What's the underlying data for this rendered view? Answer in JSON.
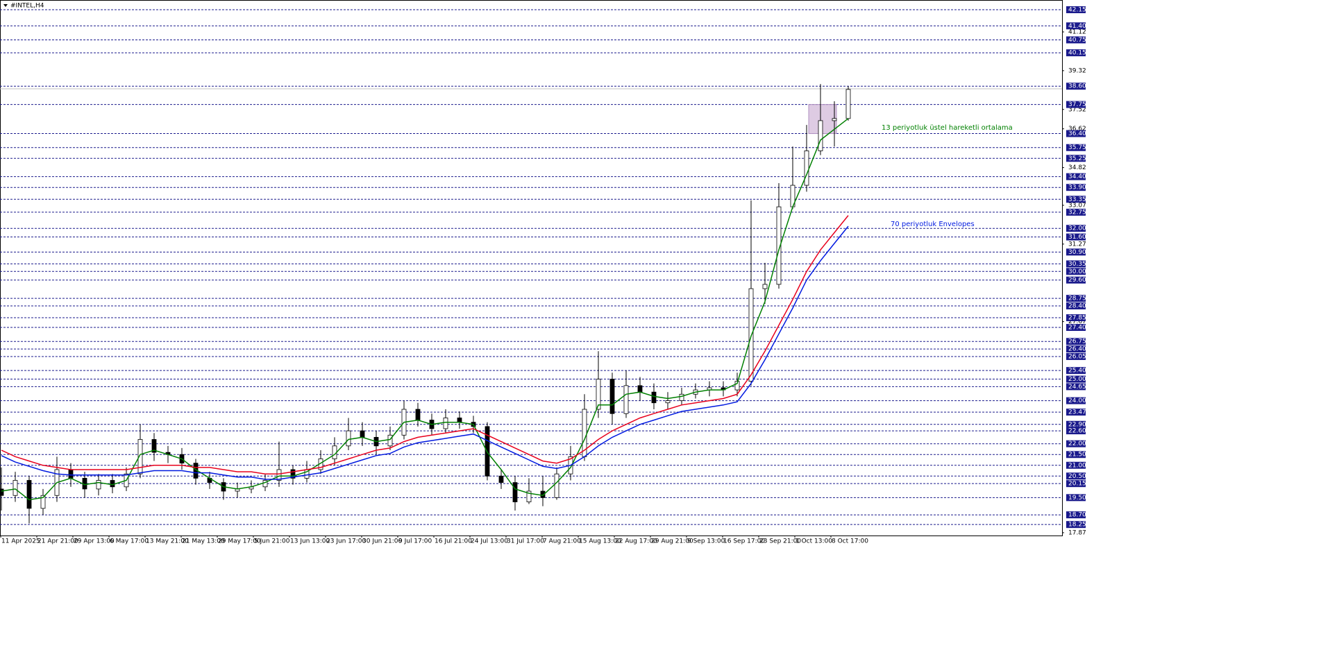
{
  "chart_data": {
    "type": "candlestick",
    "title": "#INTEL,H4",
    "ylim": [
      17.74,
      42.44
    ],
    "yticks": [
      41.12,
      39.32,
      37.52,
      36.62,
      34.82,
      33.07,
      31.27,
      27.67,
      17.87
    ],
    "levels": [
      42.15,
      {
        "value": 41.4,
        "label": "41.40"
      },
      40.75,
      40.15,
      {
        "value": 38.6,
        "label": "38.60"
      },
      37.75,
      {
        "value": 36.4,
        "label": "36.40"
      },
      35.75,
      35.25,
      {
        "value": 34.4,
        "label": "34.40"
      },
      {
        "value": 33.9,
        "label": "33.90"
      },
      33.35,
      32.75,
      {
        "value": 32,
        "label": "32.00"
      },
      {
        "value": 31.6,
        "label": "31.60"
      },
      {
        "value": 30.9,
        "label": "30.90"
      },
      30.35,
      {
        "value": 30,
        "label": "30.00"
      },
      {
        "value": 29.6,
        "label": "29.60"
      },
      28.75,
      {
        "value": 28.4,
        "label": "28.40"
      },
      27.85,
      {
        "value": 27.4,
        "label": "27.40"
      },
      26.75,
      {
        "value": 26.4,
        "label": "26.40"
      },
      26.05,
      {
        "value": 25.4,
        "label": "25.40"
      },
      {
        "value": 25,
        "label": "25.00"
      },
      24.65,
      {
        "value": 24,
        "label": "24.00"
      },
      23.47,
      {
        "value": 22.9,
        "label": "22.90"
      },
      {
        "value": 22.6,
        "label": "22.60"
      },
      {
        "value": 22,
        "label": "22.00"
      },
      {
        "value": 21.5,
        "label": "21.50"
      },
      {
        "value": 21,
        "label": "21.00"
      },
      {
        "value": 20.5,
        "label": "20.50"
      },
      20.15,
      {
        "value": 19.5,
        "label": "19.50"
      },
      {
        "value": 18.7,
        "label": "18.70"
      },
      18.25
    ],
    "level_color": "#1a1a8c",
    "price_line": 38.48,
    "range_box": [
      36.4,
      37.75
    ],
    "x_labels": [
      "11 Apr 2025",
      "21 Apr 21:00",
      "29 Apr 13:00",
      "6 May 17:00",
      "13 May 21:00",
      "21 May 13:00",
      "29 May 17:00",
      "5 Jun 21:00",
      "13 Jun 13:00",
      "23 Jun 17:00",
      "30 Jun 21:00",
      "9 Jul 17:00",
      "16 Jul 21:00",
      "24 Jul 13:00",
      "31 Jul 17:00",
      "7 Aug 21:00",
      "15 Aug 13:00",
      "22 Aug 17:00",
      "29 Aug 21:00",
      "9 Sep 13:00",
      "16 Sep 17:00",
      "23 Sep 21:00",
      "1 Oct 13:00",
      "8 Oct 17:00"
    ],
    "ohlc": {
      "open": [
        19.9,
        19.6,
        20.3,
        19.0,
        19.6,
        20.8,
        20.4,
        19.9,
        20.3,
        20.0,
        20.6,
        22.2,
        21.6,
        21.5,
        21.1,
        20.4,
        20.2,
        19.8,
        19.9,
        20.0,
        20.3,
        20.8,
        20.4,
        20.8,
        21.3,
        21.9,
        22.6,
        22.3,
        21.9,
        22.4,
        23.6,
        23.1,
        22.7,
        23.2,
        23.0,
        22.8,
        20.5,
        20.2,
        19.3,
        19.8,
        19.5,
        20.6,
        21.4,
        23.6,
        25.0,
        23.4,
        24.7,
        24.4,
        23.9,
        24.0,
        24.3,
        24.5,
        24.6,
        24.5,
        24.9,
        29.2,
        29.4,
        33.0,
        34.0,
        35.6,
        37.0,
        37.1
      ],
      "high": [
        20.9,
        20.7,
        20.5,
        19.9,
        21.4,
        21.1,
        20.7,
        20.6,
        20.6,
        20.9,
        22.9,
        22.5,
        21.9,
        21.8,
        21.3,
        20.7,
        20.4,
        20.2,
        20.3,
        20.6,
        22.1,
        21.0,
        21.2,
        21.7,
        22.3,
        23.2,
        23.0,
        22.6,
        22.8,
        24.0,
        23.9,
        23.4,
        23.6,
        23.5,
        23.3,
        23.0,
        20.8,
        20.5,
        20.4,
        20.5,
        20.9,
        21.9,
        24.3,
        26.3,
        25.3,
        25.4,
        25.1,
        24.8,
        24.4,
        24.6,
        24.8,
        24.9,
        24.9,
        25.3,
        33.3,
        30.4,
        34.1,
        35.8,
        36.8,
        38.7,
        37.9,
        38.6
      ],
      "low": [
        18.9,
        19.3,
        18.3,
        18.7,
        19.3,
        20.0,
        19.5,
        19.6,
        19.7,
        19.8,
        20.4,
        21.2,
        21.1,
        20.8,
        20.1,
        19.9,
        19.4,
        19.5,
        19.7,
        19.8,
        20.0,
        20.1,
        20.2,
        20.6,
        21.0,
        21.7,
        21.9,
        21.5,
        21.7,
        22.2,
        22.8,
        22.4,
        22.5,
        22.7,
        22.5,
        20.3,
        19.9,
        18.9,
        19.2,
        19.1,
        19.4,
        20.3,
        21.2,
        23.2,
        22.9,
        23.2,
        24.0,
        23.6,
        23.6,
        23.8,
        24.1,
        24.2,
        24.2,
        24.2,
        24.7,
        28.5,
        29.2,
        32.9,
        33.7,
        35.4,
        35.8,
        37.0
      ],
      "close": [
        19.6,
        20.3,
        19.0,
        19.6,
        20.8,
        20.4,
        19.9,
        20.3,
        20.0,
        20.6,
        22.2,
        21.6,
        21.5,
        21.1,
        20.4,
        20.2,
        19.8,
        19.9,
        20.0,
        20.3,
        20.8,
        20.4,
        20.8,
        21.3,
        21.9,
        22.6,
        22.3,
        21.9,
        22.4,
        23.6,
        23.1,
        22.7,
        23.2,
        23.0,
        22.8,
        20.5,
        20.2,
        19.3,
        19.8,
        19.5,
        20.6,
        21.4,
        23.6,
        25.0,
        23.4,
        24.7,
        24.4,
        23.9,
        24.0,
        24.3,
        24.5,
        24.6,
        24.5,
        24.9,
        29.2,
        29.4,
        33.0,
        34.0,
        35.6,
        37.0,
        37.1,
        38.45
      ]
    },
    "series": [
      {
        "color": "#008000",
        "values": [
          19.8,
          19.9,
          19.4,
          19.5,
          20.2,
          20.4,
          20.1,
          20.2,
          20.1,
          20.3,
          21.5,
          21.7,
          21.5,
          21.3,
          20.8,
          20.4,
          20.0,
          19.9,
          20.0,
          20.2,
          20.5,
          20.5,
          20.7,
          21.1,
          21.5,
          22.2,
          22.3,
          22.1,
          22.2,
          23.0,
          23.1,
          22.9,
          23.0,
          23.0,
          22.9,
          21.6,
          20.8,
          19.9,
          19.7,
          19.6,
          20.2,
          20.9,
          22.2,
          23.8,
          23.8,
          24.3,
          24.4,
          24.2,
          24.1,
          24.2,
          24.4,
          24.5,
          24.5,
          24.8,
          27.0,
          28.6,
          31.0,
          33.0,
          34.5,
          36.1,
          36.6,
          37.1
        ]
      },
      {
        "color": "#e8001c",
        "values": [
          21.7,
          21.4,
          21.2,
          21.0,
          20.9,
          20.8,
          20.8,
          20.8,
          20.8,
          20.8,
          20.9,
          21.0,
          21.0,
          21.0,
          20.9,
          20.9,
          20.8,
          20.7,
          20.7,
          20.6,
          20.6,
          20.7,
          20.8,
          20.9,
          21.1,
          21.3,
          21.5,
          21.7,
          21.8,
          22.1,
          22.3,
          22.4,
          22.5,
          22.6,
          22.7,
          22.4,
          22.1,
          21.8,
          21.5,
          21.2,
          21.1,
          21.3,
          21.7,
          22.2,
          22.6,
          22.9,
          23.2,
          23.4,
          23.6,
          23.8,
          23.9,
          24.0,
          24.1,
          24.3,
          25.2,
          26.3,
          27.5,
          28.7,
          30.0,
          31.0,
          31.8,
          32.6
        ]
      },
      {
        "color": "#0019e0",
        "values": [
          21.45,
          21.15,
          20.95,
          20.75,
          20.6,
          20.55,
          20.55,
          20.55,
          20.55,
          20.55,
          20.65,
          20.75,
          20.75,
          20.75,
          20.65,
          20.65,
          20.55,
          20.45,
          20.45,
          20.35,
          20.35,
          20.45,
          20.55,
          20.65,
          20.85,
          21.05,
          21.25,
          21.45,
          21.55,
          21.85,
          22.05,
          22.15,
          22.25,
          22.35,
          22.45,
          22.15,
          21.85,
          21.55,
          21.25,
          20.95,
          20.85,
          21.0,
          21.4,
          21.9,
          22.3,
          22.6,
          22.9,
          23.1,
          23.3,
          23.5,
          23.6,
          23.7,
          23.8,
          23.95,
          24.8,
          25.9,
          27.1,
          28.3,
          29.6,
          30.5,
          31.3,
          32.1
        ]
      }
    ],
    "annotations": [
      {
        "text": "13 periyotluk üstel hareketli ortalama",
        "color": "#008000"
      },
      {
        "text": "70 periyotluk Envelopes",
        "color": "#0019e0"
      }
    ]
  }
}
